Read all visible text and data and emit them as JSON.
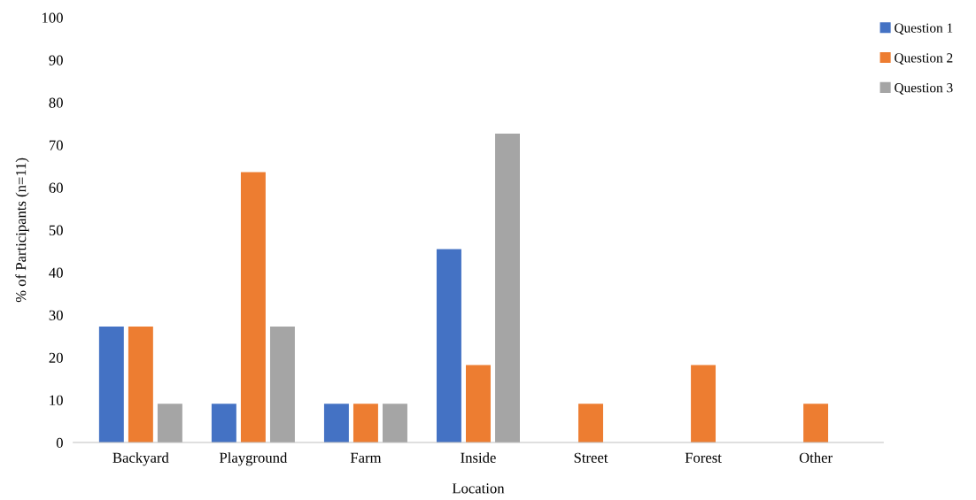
{
  "chart_data": {
    "type": "bar",
    "xlabel": "Location",
    "ylabel": "% of Participants (n=11)",
    "categories": [
      "Backyard",
      "Playground",
      "Farm",
      "Inside",
      "Street",
      "Forest",
      "Other"
    ],
    "series": [
      {
        "name": "Question 1",
        "color": "#4472c4",
        "values": [
          27.3,
          9.1,
          9.1,
          45.5,
          0,
          0,
          0
        ]
      },
      {
        "name": "Question 2",
        "color": "#ed7d31",
        "values": [
          27.3,
          63.6,
          9.1,
          18.2,
          9.1,
          18.2,
          9.1
        ]
      },
      {
        "name": "Question 3",
        "color": "#a5a5a5",
        "values": [
          9.1,
          27.3,
          9.1,
          72.7,
          0,
          0,
          0
        ]
      }
    ],
    "ylim": [
      0,
      100
    ],
    "yticks": [
      0,
      10,
      20,
      30,
      40,
      50,
      60,
      70,
      80,
      90,
      100
    ],
    "grid": false,
    "legend": "top right"
  }
}
